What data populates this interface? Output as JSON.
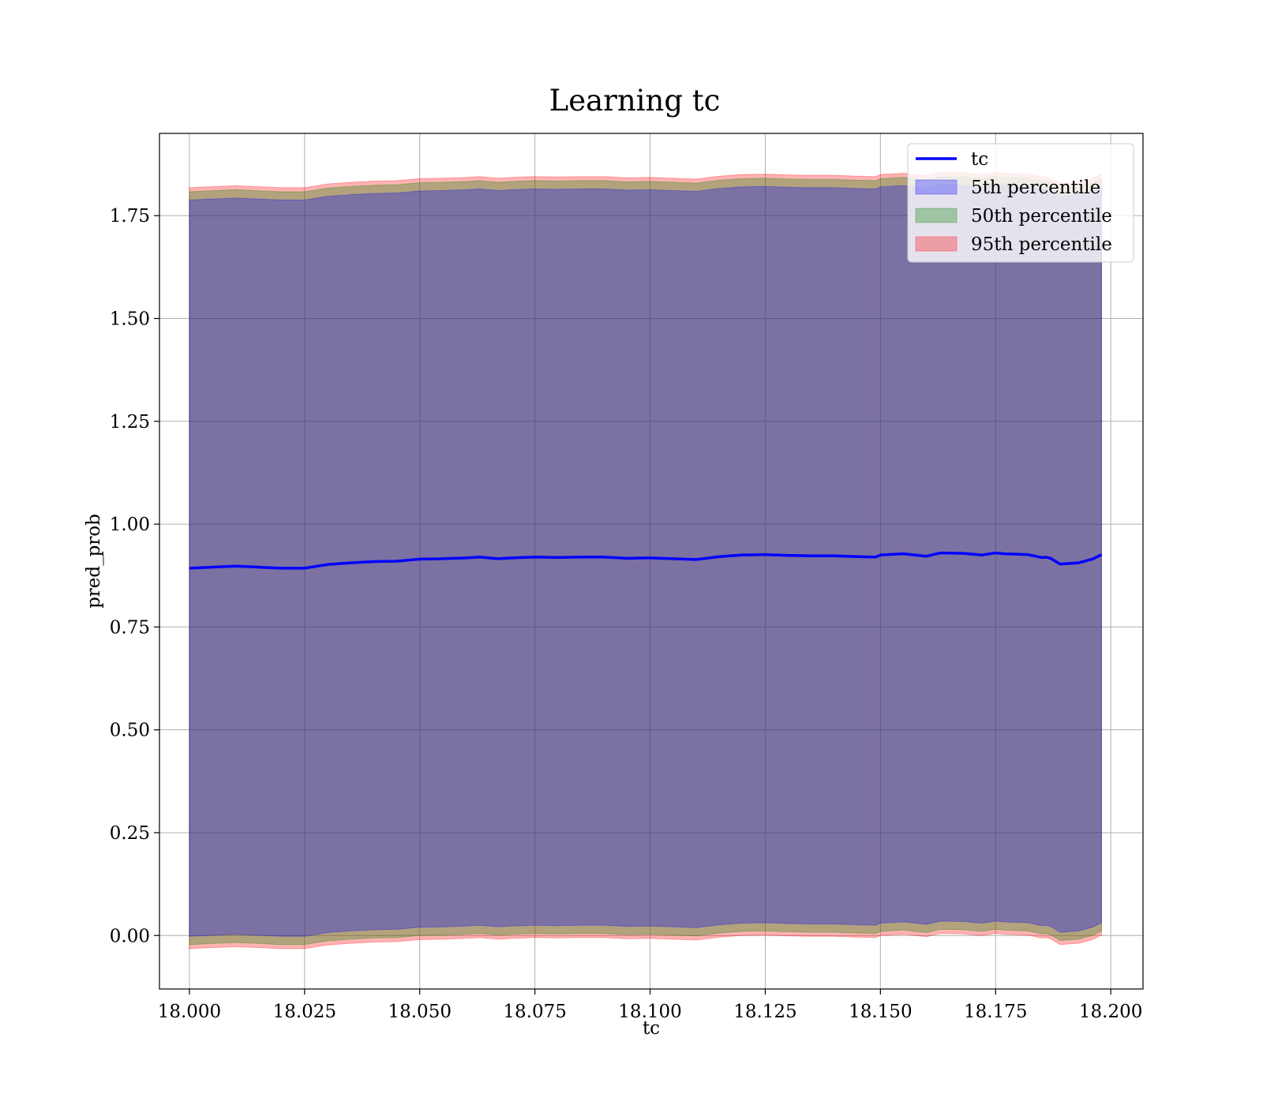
{
  "chart_data": {
    "type": "area",
    "title": "Learning tc",
    "xlabel": "tc",
    "ylabel": "pred_prob",
    "xlim": [
      17.9935,
      18.207
    ],
    "ylim": [
      -0.13,
      1.95
    ],
    "x_ticks": [
      "18.000",
      "18.025",
      "18.050",
      "18.075",
      "18.100",
      "18.125",
      "18.150",
      "18.175",
      "18.200"
    ],
    "y_ticks": [
      "0.00",
      "0.25",
      "0.50",
      "0.75",
      "1.00",
      "1.25",
      "1.50",
      "1.75"
    ],
    "grid": true,
    "legend_position": "top-right",
    "x_anchor": [
      18.0,
      18.01,
      18.02,
      18.025,
      18.03,
      18.035,
      18.04,
      18.045,
      18.05,
      18.055,
      18.06,
      18.063,
      18.067,
      18.07,
      18.075,
      18.08,
      18.085,
      18.09,
      18.095,
      18.1,
      18.105,
      18.11,
      18.115,
      18.12,
      18.125,
      18.13,
      18.135,
      18.14,
      18.145,
      18.149,
      18.15,
      18.155,
      18.16,
      18.163,
      18.168,
      18.172,
      18.175,
      18.177,
      18.182,
      18.185,
      18.1865,
      18.189,
      18.193,
      18.196,
      18.198
    ],
    "median_line_anchor": [
      0.893,
      0.898,
      0.893,
      0.893,
      0.902,
      0.906,
      0.909,
      0.91,
      0.915,
      0.916,
      0.918,
      0.92,
      0.916,
      0.918,
      0.92,
      0.919,
      0.92,
      0.92,
      0.917,
      0.918,
      0.916,
      0.914,
      0.921,
      0.925,
      0.926,
      0.924,
      0.923,
      0.923,
      0.921,
      0.92,
      0.925,
      0.928,
      0.922,
      0.93,
      0.929,
      0.925,
      0.93,
      0.928,
      0.926,
      0.919,
      0.92,
      0.903,
      0.906,
      0.915,
      0.926
    ],
    "series": [
      {
        "name": "tc",
        "kind": "line",
        "color": "#0000ff"
      },
      {
        "name": "5th percentile",
        "kind": "band",
        "color": "#0000ff",
        "lower_offset": -0.895,
        "upper_offset": 0.895
      },
      {
        "name": "50th percentile",
        "kind": "band",
        "color": "#008000",
        "lower_offset": -0.915,
        "upper_offset": 0.915
      },
      {
        "name": "95th percentile",
        "kind": "band",
        "color": "#ff0000",
        "lower_offset": -0.925,
        "upper_offset": 0.925
      }
    ]
  }
}
